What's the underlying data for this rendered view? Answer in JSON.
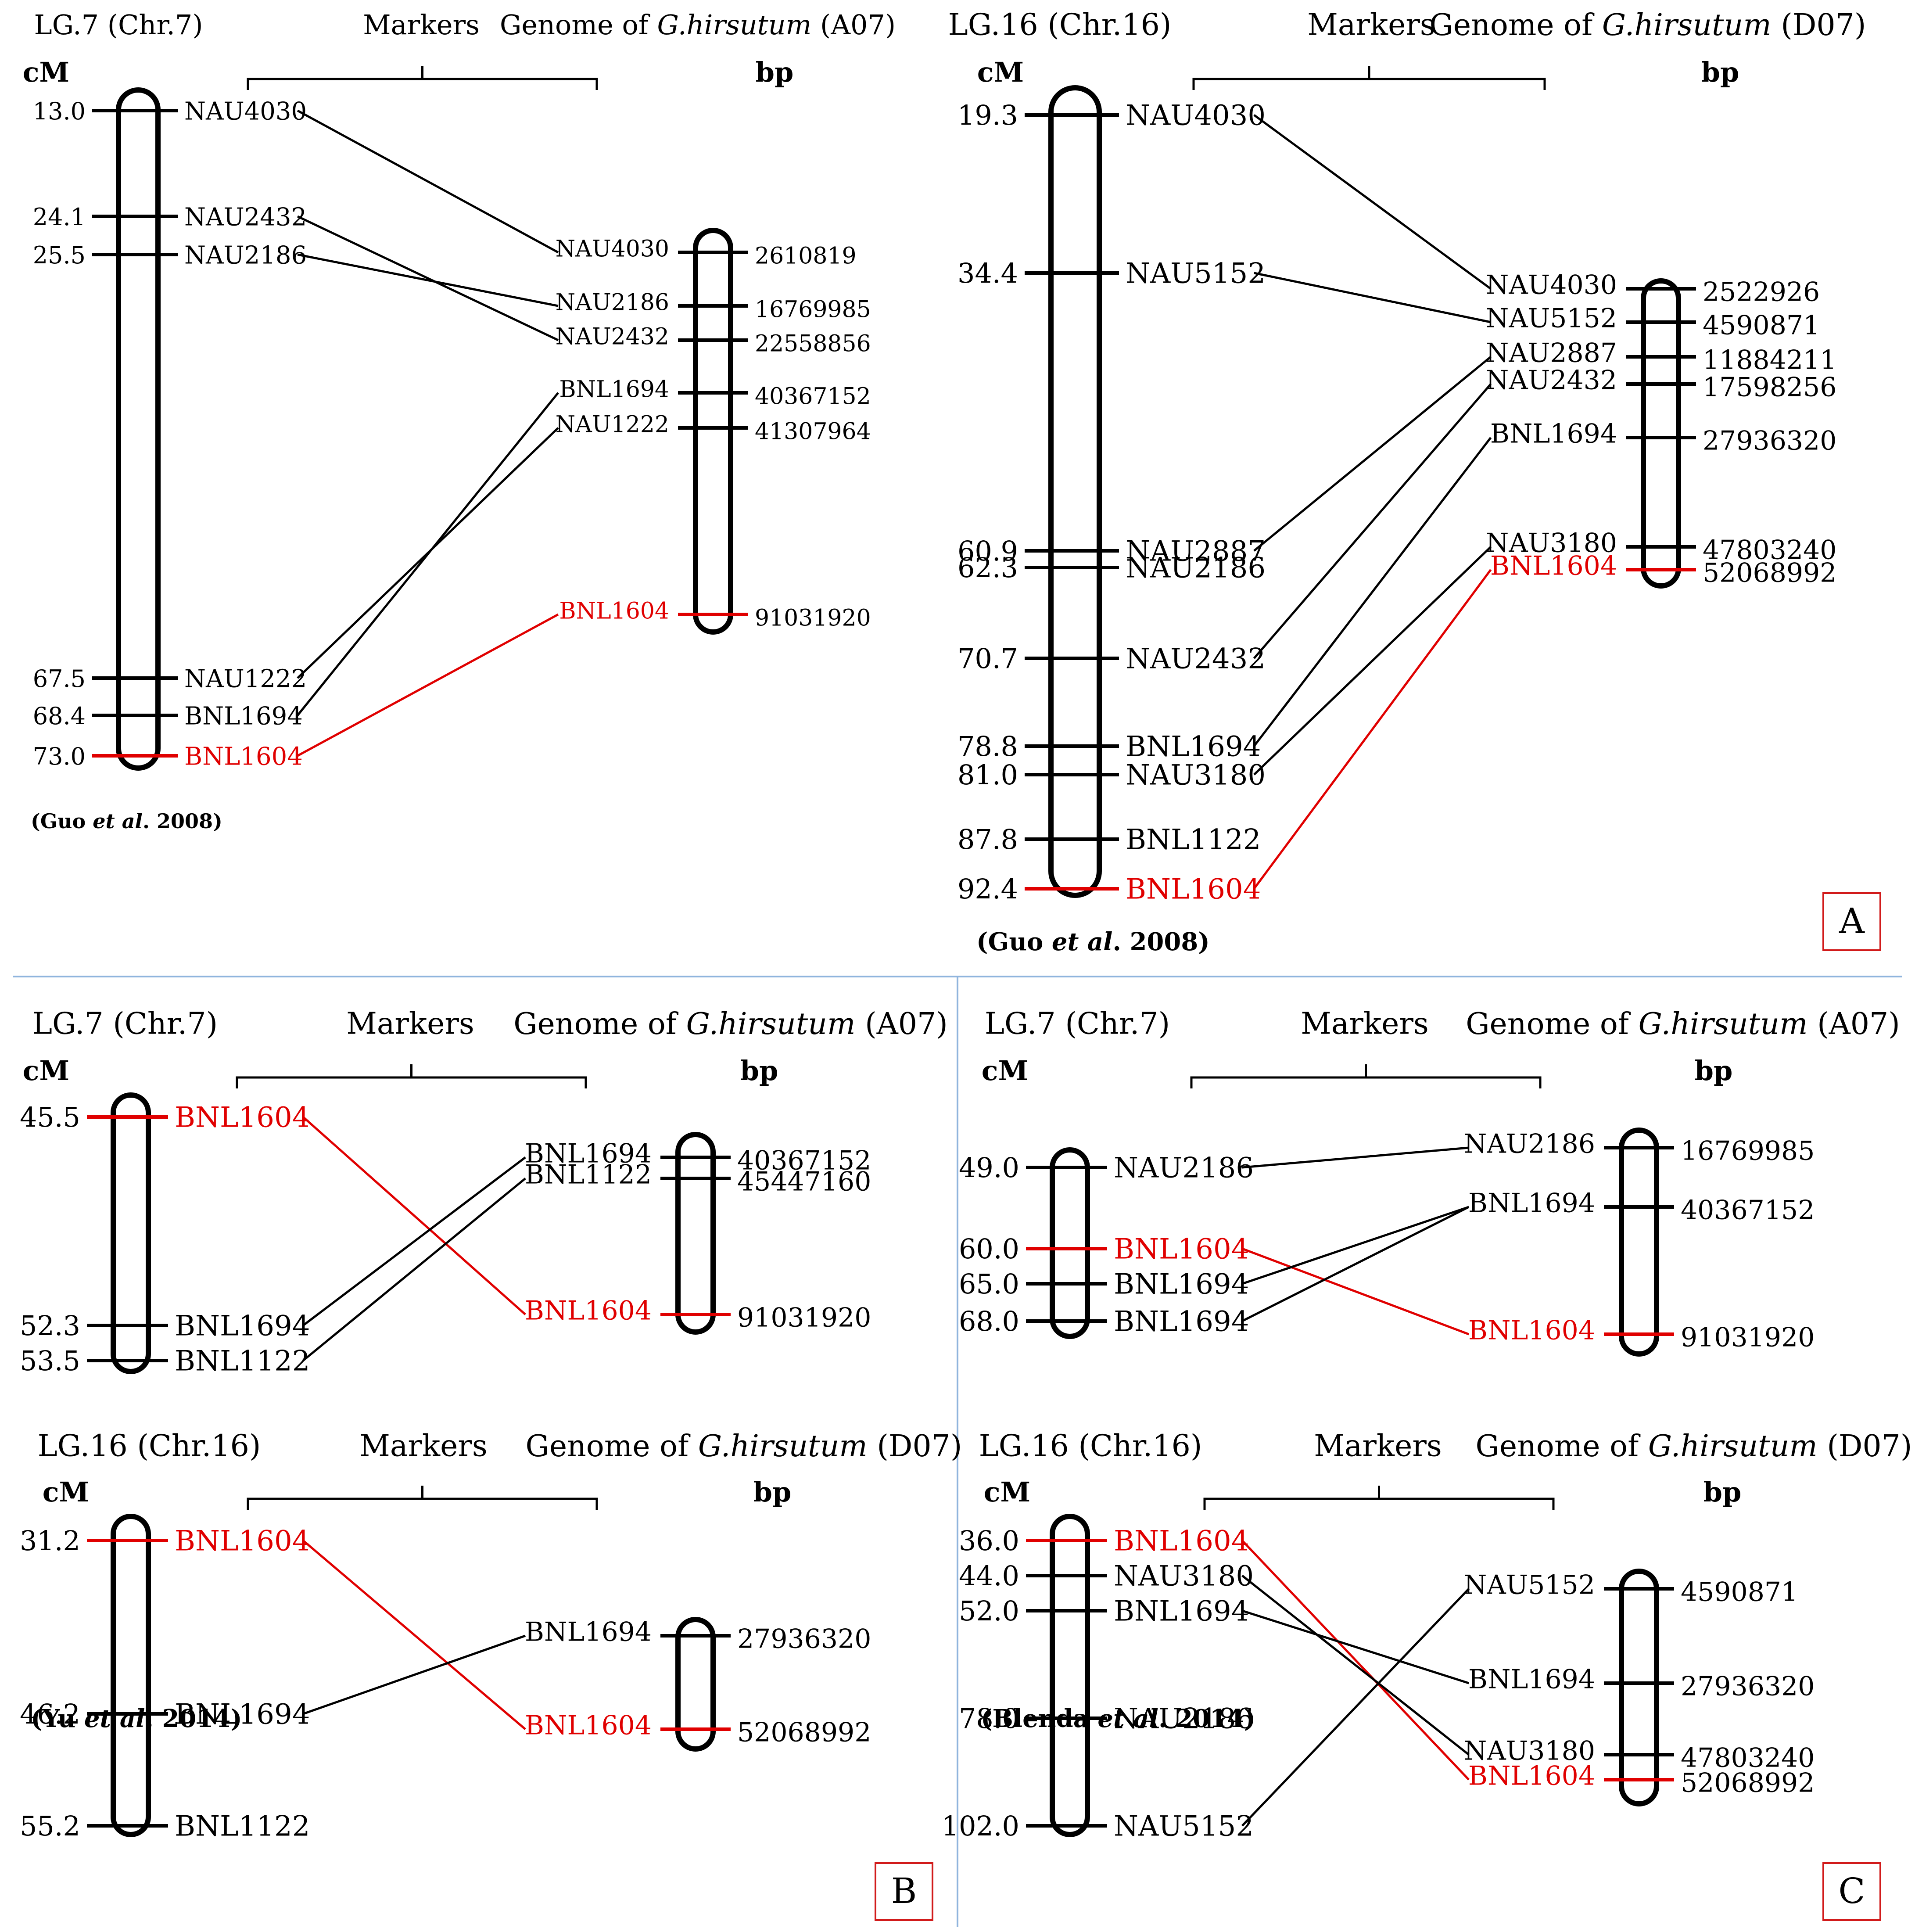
{
  "colors": {
    "highlight": "#e00000",
    "normal": "#000000",
    "divider": "#8fb4dd",
    "box": "#d11a1a"
  },
  "blocks": [
    {
      "id": "A-left",
      "title": "LG.7 (Chr.7)",
      "markers_label": "Markers",
      "genome_prefix": "Genome of ",
      "genome_species": "G.hirsutum",
      "genome_chr": " (A07)",
      "cm_label": "cM",
      "bp_label": "bp",
      "citation_pre": "(Guo ",
      "citation_it": "et al",
      "citation_post": ". 2008)",
      "linkage": [
        {
          "cm": "13.0",
          "marker": "NAU4030"
        },
        {
          "cm": "24.1",
          "marker": "NAU2432"
        },
        {
          "cm": "25.5",
          "marker": "NAU2186"
        },
        {
          "cm": "67.5",
          "marker": "NAU1222"
        },
        {
          "cm": "68.4",
          "marker": "BNL1694"
        },
        {
          "cm": "73.0",
          "marker": "BNL1604",
          "highlight": true
        }
      ],
      "physical": [
        {
          "marker": "NAU4030",
          "bp": "2610819"
        },
        {
          "marker": "NAU2186",
          "bp": "16769985"
        },
        {
          "marker": "NAU2432",
          "bp": "22558856"
        },
        {
          "marker": "BNL1694",
          "bp": "40367152"
        },
        {
          "marker": "NAU1222",
          "bp": "41307964"
        },
        {
          "marker": "BNL1604",
          "bp": "91031920",
          "highlight": true
        }
      ]
    },
    {
      "id": "A-right",
      "title": "LG.16 (Chr.16)",
      "markers_label": "Markers",
      "genome_prefix": "Genome of ",
      "genome_species": "G.hirsutum",
      "genome_chr": " (D07)",
      "cm_label": "cM",
      "bp_label": "bp",
      "citation_pre": "(Guo ",
      "citation_it": "et al",
      "citation_post": ". 2008)",
      "linkage": [
        {
          "cm": "19.3",
          "marker": "NAU4030"
        },
        {
          "cm": "34.4",
          "marker": "NAU5152"
        },
        {
          "cm": "60.9",
          "marker": "NAU2887"
        },
        {
          "cm": "62.3",
          "marker": "NAU2186"
        },
        {
          "cm": "70.7",
          "marker": "NAU2432"
        },
        {
          "cm": "78.8",
          "marker": "BNL1694"
        },
        {
          "cm": "81.0",
          "marker": "NAU3180"
        },
        {
          "cm": "87.8",
          "marker": "BNL1122"
        },
        {
          "cm": "92.4",
          "marker": "BNL1604",
          "highlight": true
        }
      ],
      "physical": [
        {
          "marker": "NAU4030",
          "bp": "2522926"
        },
        {
          "marker": "NAU5152",
          "bp": "4590871"
        },
        {
          "marker": "NAU2887",
          "bp": "11884211"
        },
        {
          "marker": "NAU2432",
          "bp": "17598256"
        },
        {
          "marker": "BNL1694",
          "bp": "27936320"
        },
        {
          "marker": "NAU3180",
          "bp": "47803240"
        },
        {
          "marker": "BNL1604",
          "bp": "52068992",
          "highlight": true
        }
      ]
    },
    {
      "id": "B-top",
      "title": "LG.7 (Chr.7)",
      "markers_label": "Markers",
      "genome_prefix": "Genome of ",
      "genome_species": "G.hirsutum",
      "genome_chr": " (A07)",
      "cm_label": "cM",
      "bp_label": "bp",
      "linkage": [
        {
          "cm": "45.5",
          "marker": "BNL1604",
          "highlight": true
        },
        {
          "cm": "52.3",
          "marker": "BNL1694"
        },
        {
          "cm": "53.5",
          "marker": "BNL1122"
        }
      ],
      "physical": [
        {
          "marker": "BNL1694",
          "bp": "40367152"
        },
        {
          "marker": "BNL1122",
          "bp": "45447160"
        },
        {
          "marker": "BNL1604",
          "bp": "91031920",
          "highlight": true
        }
      ]
    },
    {
      "id": "B-bottom",
      "title": "LG.16 (Chr.16)",
      "markers_label": "Markers",
      "genome_prefix": "Genome of ",
      "genome_species": "G.hirsutum",
      "genome_chr": " (D07)",
      "cm_label": "cM",
      "bp_label": "bp",
      "citation_pre": "(Yu ",
      "citation_it": "et al",
      "citation_post": ". 2014)",
      "linkage": [
        {
          "cm": "31.2",
          "marker": "BNL1604",
          "highlight": true
        },
        {
          "cm": "46.2",
          "marker": "BNL1694"
        },
        {
          "cm": "55.2",
          "marker": "BNL1122"
        }
      ],
      "physical": [
        {
          "marker": "BNL1694",
          "bp": "27936320"
        },
        {
          "marker": "BNL1604",
          "bp": "52068992",
          "highlight": true
        }
      ]
    },
    {
      "id": "C-top",
      "title": "LG.7 (Chr.7)",
      "markers_label": "Markers",
      "genome_prefix": "Genome of ",
      "genome_species": "G.hirsutum",
      "genome_chr": " (A07)",
      "cm_label": "cM",
      "bp_label": "bp",
      "linkage": [
        {
          "cm": "49.0",
          "marker": "NAU2186"
        },
        {
          "cm": "60.0",
          "marker": "BNL1604",
          "highlight": true
        },
        {
          "cm": "65.0",
          "marker": "BNL1694"
        },
        {
          "cm": "68.0",
          "marker": "BNL1694"
        }
      ],
      "physical": [
        {
          "marker": "NAU2186",
          "bp": "16769985"
        },
        {
          "marker": "BNL1694",
          "bp": "40367152"
        },
        {
          "marker": "BNL1604",
          "bp": "91031920",
          "highlight": true
        }
      ]
    },
    {
      "id": "C-bottom",
      "title": "LG.16 (Chr.16)",
      "markers_label": "Markers",
      "genome_prefix": "Genome of ",
      "genome_species": "G.hirsutum",
      "genome_chr": " (D07)",
      "cm_label": "cM",
      "bp_label": "bp",
      "citation_pre": "(Blenda ",
      "citation_it": "et al",
      "citation_post": ". 2014)",
      "linkage": [
        {
          "cm": "36.0",
          "marker": "BNL1604",
          "highlight": true
        },
        {
          "cm": "44.0",
          "marker": "NAU3180"
        },
        {
          "cm": "52.0",
          "marker": "BNL1694"
        },
        {
          "cm": "78.0",
          "marker": "NAU2186"
        },
        {
          "cm": "102.0",
          "marker": "NAU5152"
        }
      ],
      "physical": [
        {
          "marker": "NAU5152",
          "bp": "4590871"
        },
        {
          "marker": "BNL1694",
          "bp": "27936320"
        },
        {
          "marker": "NAU3180",
          "bp": "47803240"
        },
        {
          "marker": "BNL1604",
          "bp": "52068992",
          "highlight": true
        }
      ]
    }
  ],
  "panel_labels": [
    "A",
    "B",
    "C"
  ]
}
